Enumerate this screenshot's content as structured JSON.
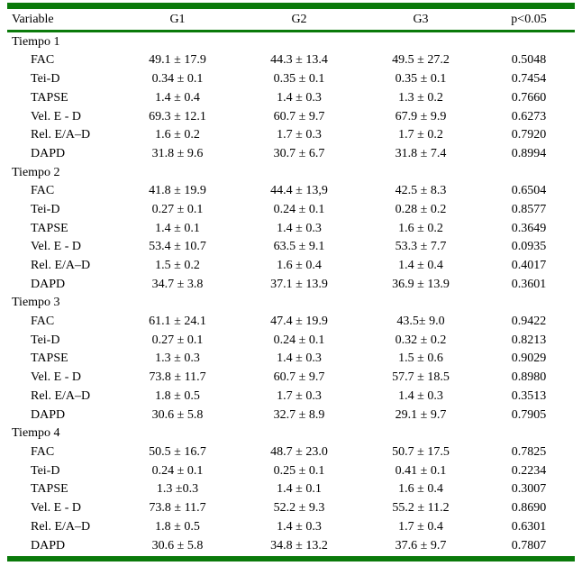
{
  "colors": {
    "rule_green": "#0a7a0a",
    "text": "#000000",
    "background": "#ffffff"
  },
  "table": {
    "headers": [
      "Variable",
      "G1",
      "G2",
      "G3",
      "p<0.05"
    ],
    "sections": [
      {
        "title": "Tiempo 1",
        "rows": [
          {
            "variable": "FAC",
            "g1": "49.1 ± 17.9",
            "g2": "44.3 ± 13.4",
            "g3": "49.5 ± 27.2",
            "p": "0.5048"
          },
          {
            "variable": "Tei-D",
            "g1": "0.34 ± 0.1",
            "g2": "0.35 ± 0.1",
            "g3": "0.35 ± 0.1",
            "p": "0.7454"
          },
          {
            "variable": "TAPSE",
            "g1": "1.4 ± 0.4",
            "g2": "1.4 ± 0.3",
            "g3": "1.3 ± 0.2",
            "p": "0.7660"
          },
          {
            "variable": "Vel. E - D",
            "g1": "69.3 ± 12.1",
            "g2": "60.7 ± 9.7",
            "g3": "67.9 ± 9.9",
            "p": "0.6273"
          },
          {
            "variable": "Rel. E/A–D",
            "g1": "1.6 ± 0.2",
            "g2": "1.7 ± 0.3",
            "g3": "1.7 ± 0.2",
            "p": "0.7920"
          },
          {
            "variable": "DAPD",
            "g1": "31.8 ± 9.6",
            "g2": "30.7 ± 6.7",
            "g3": "31.8 ± 7.4",
            "p": "0.8994"
          }
        ]
      },
      {
        "title": "Tiempo 2",
        "rows": [
          {
            "variable": "FAC",
            "g1": "41.8 ± 19.9",
            "g2": "44.4 ± 13,9",
            "g3": "42.5 ± 8.3",
            "p": "0.6504"
          },
          {
            "variable": "Tei-D",
            "g1": "0.27 ± 0.1",
            "g2": "0.24 ± 0.1",
            "g3": "0.28 ± 0.2",
            "p": "0.8577"
          },
          {
            "variable": "TAPSE",
            "g1": "1.4 ± 0.1",
            "g2": "1.4 ± 0.3",
            "g3": "1.6 ± 0.2",
            "p": "0.3649"
          },
          {
            "variable": "Vel. E - D",
            "g1": "53.4 ± 10.7",
            "g2": "63.5 ± 9.1",
            "g3": "53.3 ± 7.7",
            "p": "0.0935"
          },
          {
            "variable": "Rel. E/A–D",
            "g1": "1.5 ± 0.2",
            "g2": "1.6 ± 0.4",
            "g3": "1.4 ± 0.4",
            "p": "0.4017"
          },
          {
            "variable": "DAPD",
            "g1": "34.7 ± 3.8",
            "g2": "37.1 ± 13.9",
            "g3": "36.9 ± 13.9",
            "p": "0.3601"
          }
        ]
      },
      {
        "title": "Tiempo 3",
        "rows": [
          {
            "variable": "FAC",
            "g1": "61.1 ± 24.1",
            "g2": "47.4 ± 19.9",
            "g3": "43.5± 9.0",
            "p": "0.9422"
          },
          {
            "variable": "Tei-D",
            "g1": "0.27 ± 0.1",
            "g2": "0.24 ± 0.1",
            "g3": "0.32 ± 0.2",
            "p": "0.8213"
          },
          {
            "variable": "TAPSE",
            "g1": "1.3 ± 0.3",
            "g2": "1.4 ± 0.3",
            "g3": "1.5 ± 0.6",
            "p": "0.9029"
          },
          {
            "variable": "Vel. E - D",
            "g1": "73.8 ± 11.7",
            "g2": "60.7 ± 9.7",
            "g3": "57.7 ± 18.5",
            "p": "0.8980"
          },
          {
            "variable": "Rel. E/A–D",
            "g1": "1.8 ± 0.5",
            "g2": "1.7 ± 0.3",
            "g3": "1.4 ± 0.3",
            "p": "0.3513"
          },
          {
            "variable": "DAPD",
            "g1": "30.6 ± 5.8",
            "g2": "32.7 ± 8.9",
            "g3": "29.1 ± 9.7",
            "p": "0.7905"
          }
        ]
      },
      {
        "title": "Tiempo 4",
        "rows": [
          {
            "variable": "FAC",
            "g1": "50.5 ± 16.7",
            "g2": "48.7 ± 23.0",
            "g3": "50.7 ± 17.5",
            "p": "0.7825"
          },
          {
            "variable": "Tei-D",
            "g1": "0.24 ± 0.1",
            "g2": "0.25 ± 0.1",
            "g3": "0.41 ± 0.1",
            "p": "0.2234"
          },
          {
            "variable": "TAPSE",
            "g1": "1.3 ±0.3",
            "g2": "1.4 ± 0.1",
            "g3": "1.6 ± 0.4",
            "p": "0.3007"
          },
          {
            "variable": "Vel. E - D",
            "g1": "73.8 ± 11.7",
            "g2": "52.2 ± 9.3",
            "g3": "55.2 ± 11.2",
            "p": "0.8690"
          },
          {
            "variable": "Rel. E/A–D",
            "g1": "1.8 ± 0.5",
            "g2": "1.4 ± 0.3",
            "g3": "1.7 ± 0.4",
            "p": "0.6301"
          },
          {
            "variable": "DAPD",
            "g1": "30.6 ± 5.8",
            "g2": "34.8 ± 13.2",
            "g3": "37.6 ± 9.7",
            "p": "0.7807"
          }
        ]
      }
    ]
  }
}
